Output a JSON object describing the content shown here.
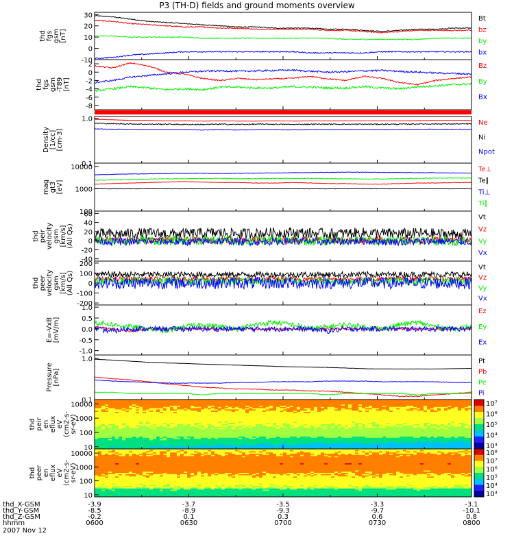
{
  "title": "P3 (TH-D) fields and ground moments overview",
  "date": "2007 Nov 12",
  "colors": {
    "black": "#000000",
    "red": "#ff0000",
    "green": "#00ee00",
    "blue": "#0000ff",
    "thin_red": "#ff0000"
  },
  "ephemeris": {
    "row_labels": [
      "thd_X-GSM",
      "thd_Y-GSM",
      "thd_Z-GSM",
      "hhmm"
    ],
    "columns": [
      {
        "x": "-3.9",
        "y": "-8.5",
        "z": "-0.2",
        "t": "0600"
      },
      {
        "x": "-3.7",
        "y": "-8.9",
        "z": "0.1",
        "t": "0630"
      },
      {
        "x": "-3.5",
        "y": "-9.3",
        "z": "0.3",
        "t": "0700"
      },
      {
        "x": "-3.3",
        "y": "-9.7",
        "z": "0.6",
        "t": "0730"
      },
      {
        "x": "-3.1",
        "y": "-10.1",
        "z": "0.8",
        "t": "0800"
      }
    ]
  },
  "chart_data": [
    {
      "type": "line",
      "ylabel": [
        "thd",
        "fgs",
        "gsm",
        "[nT]"
      ],
      "ylim": [
        -10,
        32
      ],
      "ticks": [
        30,
        20,
        10,
        0,
        -10
      ],
      "series": [
        {
          "name": "Bt",
          "color": "black",
          "values": [
            29,
            28,
            26,
            24,
            23,
            22,
            21,
            20,
            19,
            19,
            18,
            18,
            18,
            17,
            17,
            16,
            15,
            16,
            17,
            17,
            18,
            18
          ],
          "noise": 0.4
        },
        {
          "name": "bz",
          "color": "red",
          "values": [
            25,
            24,
            22,
            21,
            20,
            19,
            19,
            18,
            18,
            17,
            17,
            17,
            17,
            16,
            16,
            15,
            14,
            15,
            16,
            16,
            16,
            16
          ],
          "noise": 0.5
        },
        {
          "name": "by",
          "color": "green",
          "values": [
            11,
            11,
            10,
            10,
            10,
            10,
            9,
            9,
            9,
            9,
            9,
            9,
            9,
            9,
            8,
            8,
            8,
            8,
            8,
            9,
            9,
            9
          ],
          "noise": 0.4
        },
        {
          "name": "bx",
          "color": "blue",
          "values": [
            -9,
            -8,
            -6,
            -5,
            -4,
            -3,
            -3,
            -3,
            -3,
            -3,
            -3,
            -3,
            -4,
            -4,
            -4,
            -4,
            -3,
            -3,
            -3,
            -3,
            -3,
            -3
          ],
          "noise": 0.5
        }
      ]
    },
    {
      "type": "line",
      "ylabel": [
        "thd",
        "fgs",
        "gsm",
        "-T89",
        "[nT]"
      ],
      "ylim": [
        -9,
        3
      ],
      "ticks": [
        2,
        0,
        -2,
        -4,
        -6,
        -8
      ],
      "series": [
        {
          "name": "Bz",
          "color": "red",
          "values": [
            1.5,
            1.0,
            2.2,
            1.5,
            0.0,
            -0.5,
            -1.5,
            -2.0,
            -1.5,
            -1.8,
            -1.6,
            -1.5,
            -1.0,
            -1.6,
            -2.0,
            -1.0,
            -1.5,
            -2.5,
            -3.0,
            -2.0,
            -1.5,
            -1.2
          ],
          "noise": 0.15
        },
        {
          "name": "By",
          "color": "green",
          "values": [
            -4.5,
            -4.0,
            -3.5,
            -3.8,
            -4.2,
            -4.0,
            -4.2,
            -3.6,
            -3.6,
            -3.8,
            -3.8,
            -3.5,
            -3.6,
            -3.8,
            -3.8,
            -3.5,
            -3.8,
            -4.0,
            -3.5,
            -3.3,
            -3.0,
            -2.8
          ],
          "noise": 0.25
        },
        {
          "name": "Bx",
          "color": "blue",
          "values": [
            -2.5,
            -2.0,
            -1.2,
            -0.8,
            -0.4,
            0.0,
            0.2,
            0.3,
            0.2,
            0.3,
            0.4,
            0.5,
            0.2,
            0.0,
            0.1,
            0.3,
            0.4,
            0.2,
            0.0,
            -0.2,
            -0.3,
            -0.5
          ],
          "noise": 0.2
        }
      ]
    },
    {
      "type": "line",
      "ylabel": [
        "Density",
        "[1/cc]",
        "[cm-3]"
      ],
      "ylim": [
        0.1,
        1.1
      ],
      "log": true,
      "ticks": [
        1.0,
        0.1
      ],
      "tick_labels": [
        "1.0",
        "0.1"
      ],
      "series": [
        {
          "name": "Ne",
          "color": "red",
          "values": [
            0.95,
            0.93,
            0.9,
            0.9,
            0.88,
            0.88,
            0.87,
            0.88,
            0.87,
            0.87,
            0.88,
            0.87,
            0.88,
            0.88,
            0.88,
            0.88,
            0.88,
            0.88,
            0.89,
            0.9,
            0.9,
            0.9
          ],
          "noise": 0.005
        },
        {
          "name": "Ni",
          "color": "black",
          "values": [
            0.78,
            0.76,
            0.75,
            0.74,
            0.74,
            0.73,
            0.73,
            0.74,
            0.73,
            0.74,
            0.74,
            0.73,
            0.74,
            0.74,
            0.74,
            0.74,
            0.74,
            0.74,
            0.75,
            0.75,
            0.75,
            0.75
          ],
          "noise": 0.02
        },
        {
          "name": "Npot",
          "color": "blue",
          "values": [
            0.58,
            0.57,
            0.57,
            0.56,
            0.56,
            0.56,
            0.55,
            0.56,
            0.55,
            0.56,
            0.56,
            0.55,
            0.56,
            0.56,
            0.56,
            0.56,
            0.56,
            0.56,
            0.57,
            0.57,
            0.57,
            0.57
          ],
          "noise": 0.008
        }
      ]
    },
    {
      "type": "line",
      "ylabel": [
        "mag",
        "gt3",
        "[eV]"
      ],
      "ylim": [
        100,
        14000
      ],
      "log": true,
      "ticks": [
        10000,
        1000,
        100
      ],
      "tick_labels": [
        "10000",
        "1000",
        "100"
      ],
      "series": [
        {
          "name": "Te⊥",
          "color": "red",
          "values": [
            1600,
            1700,
            1800,
            1900,
            2000,
            2100,
            2000,
            1900,
            1900,
            1800,
            1800,
            1900,
            1800,
            1700,
            1700,
            1600,
            1600,
            1700,
            1800,
            1800,
            1900,
            1900
          ],
          "noise": 40
        },
        {
          "name": "Te∥",
          "color": "black",
          "values": [
            1000,
            1000,
            1000,
            1000,
            1000,
            1000,
            1000,
            1000,
            1000,
            1000,
            1000,
            1000,
            1000,
            1000,
            1000,
            1000,
            1000,
            1000,
            1000,
            1000,
            1000,
            1000
          ],
          "noise": 20
        },
        {
          "name": "Ti⊥",
          "color": "blue",
          "values": [
            4200,
            4400,
            4600,
            4700,
            4800,
            4900,
            4900,
            4800,
            4900,
            5000,
            5100,
            5200,
            5300,
            5400,
            5500,
            5500,
            5400,
            5300,
            5200,
            5200,
            5100,
            5000
          ],
          "noise": 120
        },
        {
          "name": "Ti∥",
          "color": "green",
          "values": [
            2400,
            2500,
            2600,
            2700,
            2800,
            2800,
            2900,
            2900,
            2800,
            2800,
            2900,
            2900,
            2900,
            2800,
            2800,
            2700,
            2700,
            2800,
            2900,
            3000,
            3000,
            3000
          ],
          "noise": 80
        }
      ]
    },
    {
      "type": "line",
      "ylabel": [
        "thd",
        "peir",
        "velocity",
        "gsm",
        "[km/s]",
        "(All Qs)"
      ],
      "ylim": [
        -45,
        65
      ],
      "ticks": [
        60,
        40,
        20,
        0,
        -20,
        -40
      ],
      "series": [
        {
          "name": "Vt",
          "color": "black",
          "values": [
            15,
            14,
            15,
            16,
            15,
            15,
            16,
            17,
            15,
            16,
            17,
            18,
            16,
            15,
            16,
            17,
            16,
            15,
            16,
            15,
            14,
            15
          ],
          "noise": 12
        },
        {
          "name": "Vz",
          "color": "red",
          "values": [
            2,
            2,
            0,
            1,
            2,
            1,
            0,
            1,
            2,
            1,
            0,
            1,
            2,
            1,
            0,
            1,
            2,
            1,
            0,
            1,
            2,
            1
          ],
          "noise": 7
        },
        {
          "name": "Vy",
          "color": "green",
          "values": [
            0,
            -1,
            0,
            1,
            -1,
            0,
            1,
            0,
            -1,
            0,
            1,
            0,
            -1,
            0,
            1,
            0,
            -1,
            0,
            1,
            0,
            -1,
            0
          ],
          "noise": 10
        },
        {
          "name": "Vx",
          "color": "blue",
          "values": [
            -2,
            -2,
            -3,
            -1,
            -2,
            -3,
            -2,
            -1,
            -2,
            -3,
            -2,
            -1,
            -2,
            -3,
            -2,
            -1,
            -2,
            -3,
            -2,
            -1,
            -2,
            -2
          ],
          "noise": 8
        }
      ]
    },
    {
      "type": "line",
      "ylabel": [
        "thd",
        "peer",
        "velocity",
        "gsm",
        "[km/s]",
        "(All Qs)"
      ],
      "ylim": [
        -220,
        220
      ],
      "ticks": [
        200,
        100,
        0,
        -100,
        -200
      ],
      "series": [
        {
          "name": "Vt",
          "color": "black",
          "values": [
            85,
            85,
            85,
            85,
            85,
            85,
            85,
            85,
            85,
            85,
            85,
            85,
            85,
            85,
            85,
            85,
            85,
            85,
            85,
            85,
            85,
            85
          ],
          "noise": 30
        },
        {
          "name": "Vz",
          "color": "red",
          "values": [
            40,
            40,
            40,
            40,
            40,
            40,
            40,
            40,
            40,
            40,
            40,
            40,
            40,
            40,
            40,
            40,
            40,
            40,
            40,
            40,
            40,
            40
          ],
          "noise": 25
        },
        {
          "name": "Vy",
          "color": "green",
          "values": [
            20,
            20,
            20,
            20,
            20,
            20,
            20,
            20,
            20,
            20,
            20,
            20,
            20,
            20,
            20,
            20,
            20,
            20,
            20,
            20,
            20,
            20
          ],
          "noise": 40
        },
        {
          "name": "Vx",
          "color": "blue",
          "values": [
            0,
            0,
            0,
            0,
            0,
            0,
            0,
            0,
            0,
            0,
            0,
            0,
            0,
            0,
            0,
            0,
            0,
            0,
            0,
            0,
            0,
            0
          ],
          "noise": 60
        }
      ]
    },
    {
      "type": "line",
      "ylabel": [
        "E=-VxB",
        "[mV/m]"
      ],
      "ylim": [
        -1.2,
        1.1
      ],
      "ticks": [
        1.0,
        0.5,
        0.0,
        -0.5,
        -1.0
      ],
      "tick_labels": [
        "1.0",
        "0.5",
        "0.0",
        "-0.5",
        "-1.0"
      ],
      "series": [
        {
          "name": "Ez",
          "color": "red",
          "values": [
            0.1,
            0.0,
            -0.1,
            0.0,
            0.0,
            0.0,
            0.0,
            0.0,
            0.0,
            0.0,
            0.0,
            0.0,
            0.0,
            0.0,
            0.0,
            0.0,
            0.0,
            0.0,
            0.0,
            0.0,
            0.0,
            0.0
          ],
          "noise": 0.05
        },
        {
          "name": "Ey",
          "color": "green",
          "values": [
            0.3,
            0.2,
            0.1,
            0.0,
            -0.1,
            0.1,
            0.2,
            0.1,
            0.0,
            0.2,
            0.3,
            0.2,
            0.0,
            0.1,
            0.2,
            0.1,
            0.0,
            0.2,
            0.3,
            0.1,
            0.0,
            0.1
          ],
          "noise": 0.12
        },
        {
          "name": "Ex",
          "color": "blue",
          "values": [
            0.0,
            -0.1,
            0.0,
            0.0,
            0.0,
            0.0,
            0.0,
            0.0,
            0.0,
            0.0,
            0.0,
            0.0,
            0.0,
            -0.1,
            0.0,
            0.0,
            0.0,
            0.0,
            0.0,
            0.0,
            0.0,
            0.0
          ],
          "noise": 0.12
        }
      ]
    },
    {
      "type": "line",
      "ylabel": [
        "Pressure",
        "[nPa]"
      ],
      "ylim": [
        0.1,
        1.2
      ],
      "log": true,
      "ticks": [
        1.0,
        0.1
      ],
      "tick_labels": [
        "1.0",
        "0.1"
      ],
      "series": [
        {
          "name": "Pt",
          "color": "black",
          "values": [
            0.95,
            0.9,
            0.85,
            0.8,
            0.77,
            0.75,
            0.72,
            0.7,
            0.68,
            0.66,
            0.64,
            0.62,
            0.61,
            0.6,
            0.58,
            0.56,
            0.55,
            0.55,
            0.55,
            0.55,
            0.56,
            0.57
          ],
          "noise": 0.003
        },
        {
          "name": "Pb",
          "color": "red",
          "values": [
            0.35,
            0.32,
            0.3,
            0.27,
            0.24,
            0.22,
            0.2,
            0.19,
            0.18,
            0.18,
            0.17,
            0.17,
            0.16,
            0.16,
            0.15,
            0.14,
            0.13,
            0.12,
            0.12,
            0.13,
            0.14,
            0.15
          ],
          "noise": 0.003
        },
        {
          "name": "Pe",
          "color": "green",
          "values": [
            0.15,
            0.15,
            0.14,
            0.14,
            0.14,
            0.14,
            0.13,
            0.14,
            0.14,
            0.14,
            0.14,
            0.14,
            0.14,
            0.13,
            0.14,
            0.14,
            0.14,
            0.14,
            0.13,
            0.14,
            0.14,
            0.14
          ],
          "noise": 0.002
        },
        {
          "name": "Pi",
          "color": "blue",
          "values": [
            0.3,
            0.28,
            0.27,
            0.26,
            0.25,
            0.25,
            0.25,
            0.25,
            0.26,
            0.26,
            0.27,
            0.27,
            0.27,
            0.28,
            0.28,
            0.28,
            0.27,
            0.27,
            0.27,
            0.27,
            0.26,
            0.26
          ],
          "noise": 0.004
        }
      ]
    },
    {
      "type": "heatmap",
      "ylabel": [
        "thd",
        "peir",
        "en",
        "eflux",
        "eV",
        "(cm2-s-",
        "sr-eV)"
      ],
      "ylim": [
        7,
        20000
      ],
      "log": true,
      "ticks": [
        10000,
        1000,
        100,
        10
      ],
      "tick_labels": [
        "10000",
        "1000",
        "100",
        "10"
      ],
      "colorbar": {
        "min_exp": 3,
        "max_exp": 7,
        "labels": [
          "10⁷",
          "10⁶",
          "10⁵",
          "10⁴",
          "10³"
        ]
      }
    },
    {
      "type": "heatmap",
      "ylabel": [
        "thd",
        "peer",
        "en",
        "eflux",
        "eV",
        "(cm2-s-",
        "sr-eV)"
      ],
      "ylim": [
        7,
        20000
      ],
      "log": true,
      "ticks": [
        10000,
        1000,
        100,
        10
      ],
      "tick_labels": [
        "10000",
        "1000",
        "100",
        "10"
      ],
      "colorbar": {
        "min_exp": 3,
        "max_exp": 8,
        "labels": [
          "10⁸",
          "10⁷",
          "10⁶",
          "10⁵",
          "10⁴",
          "10³"
        ]
      }
    }
  ]
}
